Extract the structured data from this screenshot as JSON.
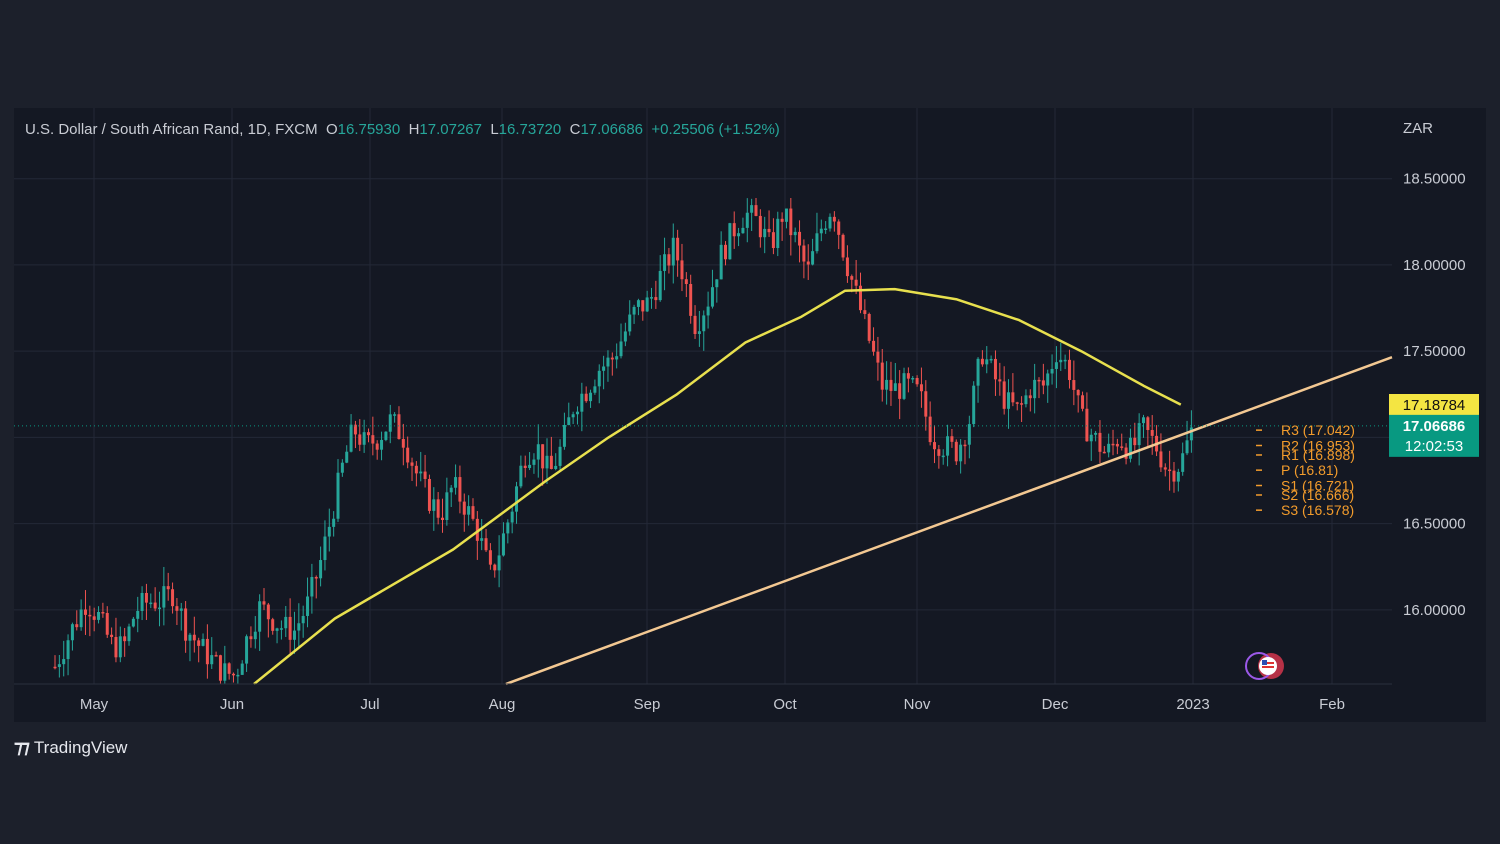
{
  "header": {
    "symbol": "U.S. Dollar / South African Rand, 1D, FXCM",
    "open_label": "O",
    "open": "16.75930",
    "high_label": "H",
    "high": "17.07267",
    "low_label": "L",
    "low": "16.73720",
    "close_label": "C",
    "close": "17.06686",
    "change": "+0.25506 (+1.52%)",
    "currency": "ZAR"
  },
  "branding": {
    "logo_text": "TradingView"
  },
  "colors": {
    "bull": "#26a69a",
    "bear": "#ef5350",
    "ma": "#e8e04e",
    "trendline": "#f3c892",
    "pivot": "#f39c2c",
    "price_badge": "#089981",
    "ma_badge": "#f4e542"
  },
  "chart_data": {
    "type": "candlestick",
    "x_ticks": [
      "May",
      "Jun",
      "Jul",
      "Aug",
      "Sep",
      "Oct",
      "Nov",
      "Dec",
      "2023",
      "Feb"
    ],
    "y_ticks": [
      "16.00000",
      "16.50000",
      "17.00000",
      "17.50000",
      "18.00000",
      "18.50000"
    ],
    "y_tick_values": [
      16.0,
      16.5,
      17.0,
      17.5,
      18.0,
      18.5
    ],
    "ylim": [
      15.57,
      18.91
    ],
    "grid": true,
    "series_points": [
      [
        0,
        15.67
      ],
      [
        5,
        15.87
      ],
      [
        10,
        16.05
      ],
      [
        14,
        15.96
      ],
      [
        18,
        15.8
      ],
      [
        22,
        15.78
      ],
      [
        26,
        16.0
      ],
      [
        30,
        16.05
      ],
      [
        34,
        16.05
      ],
      [
        38,
        16.1
      ],
      [
        42,
        15.9
      ],
      [
        46,
        15.8
      ],
      [
        50,
        15.72
      ],
      [
        54,
        15.64
      ],
      [
        58,
        15.62
      ],
      [
        62,
        15.85
      ],
      [
        66,
        16.02
      ],
      [
        69,
        15.96
      ],
      [
        73,
        15.9
      ],
      [
        77,
        15.88
      ],
      [
        81,
        16.02
      ],
      [
        85,
        16.25
      ],
      [
        89,
        16.55
      ],
      [
        92,
        16.8
      ],
      [
        96,
        17.05
      ],
      [
        100,
        16.95
      ],
      [
        104,
        17.0
      ],
      [
        108,
        17.1
      ],
      [
        112,
        17.0
      ],
      [
        116,
        16.8
      ],
      [
        120,
        16.65
      ],
      [
        124,
        16.55
      ],
      [
        128,
        16.72
      ],
      [
        132,
        16.6
      ],
      [
        136,
        16.45
      ],
      [
        140,
        16.2
      ],
      [
        143,
        16.35
      ],
      [
        147,
        16.6
      ],
      [
        151,
        16.9
      ],
      [
        155,
        16.95
      ],
      [
        159,
        16.78
      ],
      [
        163,
        16.95
      ],
      [
        167,
        17.2
      ],
      [
        171,
        17.28
      ],
      [
        175,
        17.4
      ],
      [
        179,
        17.45
      ],
      [
        183,
        17.6
      ],
      [
        187,
        17.75
      ],
      [
        191,
        17.78
      ],
      [
        195,
        17.95
      ],
      [
        199,
        18.1
      ],
      [
        202,
        17.95
      ],
      [
        206,
        17.65
      ],
      [
        210,
        17.8
      ],
      [
        214,
        18.05
      ],
      [
        218,
        18.2
      ],
      [
        222,
        18.3
      ],
      [
        226,
        18.25
      ],
      [
        230,
        18.1
      ],
      [
        234,
        18.3
      ],
      [
        238,
        18.15
      ],
      [
        242,
        17.95
      ],
      [
        246,
        18.2
      ],
      [
        250,
        18.35
      ],
      [
        254,
        18.05
      ],
      [
        258,
        17.8
      ],
      [
        262,
        17.55
      ],
      [
        266,
        17.3
      ],
      [
        270,
        17.28
      ],
      [
        274,
        17.3
      ],
      [
        278,
        17.25
      ],
      [
        282,
        17.0
      ],
      [
        286,
        16.95
      ],
      [
        290,
        16.92
      ],
      [
        294,
        17.1
      ],
      [
        298,
        17.5
      ],
      [
        302,
        17.35
      ],
      [
        306,
        17.2
      ],
      [
        310,
        17.15
      ],
      [
        314,
        17.3
      ],
      [
        318,
        17.3
      ],
      [
        322,
        17.5
      ],
      [
        326,
        17.4
      ],
      [
        330,
        17.1
      ],
      [
        334,
        17.0
      ],
      [
        338,
        16.9
      ],
      [
        342,
        17.0
      ],
      [
        346,
        16.92
      ],
      [
        350,
        17.05
      ],
      [
        354,
        16.95
      ],
      [
        358,
        16.8
      ],
      [
        362,
        16.85
      ],
      [
        366,
        17.07
      ]
    ],
    "moving_average": [
      [
        64,
        15.57
      ],
      [
        90,
        15.95
      ],
      [
        128,
        16.35
      ],
      [
        158,
        16.75
      ],
      [
        178,
        17.0
      ],
      [
        200,
        17.25
      ],
      [
        222,
        17.55
      ],
      [
        240,
        17.7
      ],
      [
        254,
        17.85
      ],
      [
        270,
        17.86
      ],
      [
        290,
        17.8
      ],
      [
        310,
        17.68
      ],
      [
        330,
        17.5
      ],
      [
        350,
        17.3
      ],
      [
        362,
        17.19
      ]
    ],
    "trendline": {
      "from": [
        145,
        15.57
      ],
      "to": [
        375,
        17.1
      ]
    },
    "current_price": {
      "value": 17.06686,
      "label": "17.06686",
      "countdown": "12:02:53"
    },
    "ma_value": {
      "value": 17.18784,
      "label": "17.18784"
    },
    "pivots": [
      {
        "label": "R3 (17.042)",
        "value": 17.042
      },
      {
        "label": "R2 (16.953)",
        "value": 16.953
      },
      {
        "label": "R1 (16.898)",
        "value": 16.898
      },
      {
        "label": "P (16.81)",
        "value": 16.81
      },
      {
        "label": "S1 (16.721)",
        "value": 16.721
      },
      {
        "label": "S2 (16.666)",
        "value": 16.666
      },
      {
        "label": "S3 (16.578)",
        "value": 16.578
      }
    ]
  }
}
